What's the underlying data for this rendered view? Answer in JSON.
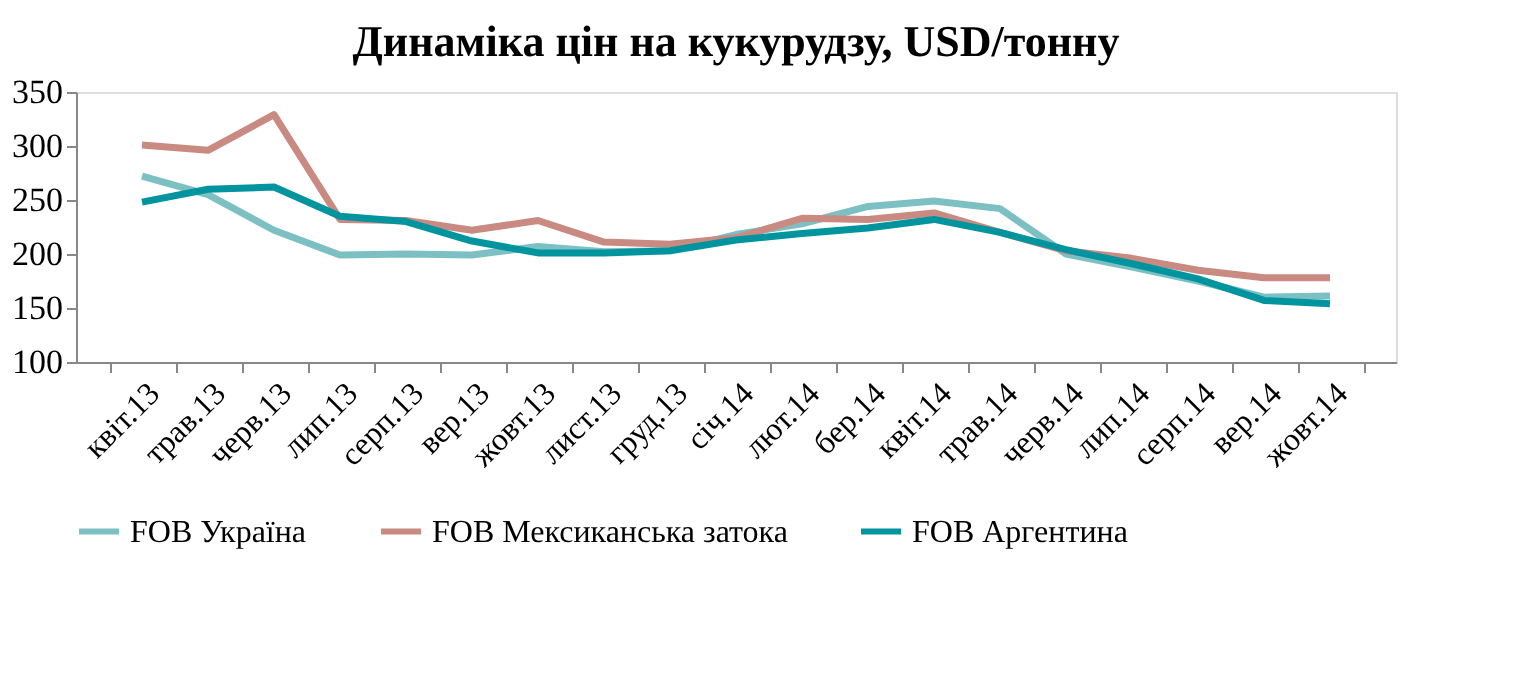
{
  "chart_data": {
    "type": "line",
    "title": "Динаміка цін на кукурудзу, USD/тонну",
    "categories": [
      "квіт.13",
      "трав.13",
      "черв.13",
      "лип.13",
      "серп.13",
      "вер.13",
      "жовт.13",
      "лист.13",
      "груд.13",
      "січ.14",
      "лют.14",
      "бер.14",
      "квіт.14",
      "трав.14",
      "черв.14",
      "лип.14",
      "серп.14",
      "вер.14",
      "жовт.14"
    ],
    "series": [
      {
        "name": "FOB Україна",
        "color": "#7dc0c4",
        "values": [
          272,
          255,
          222,
          199,
          200,
          199,
          207,
          202,
          203,
          218,
          228,
          244,
          249,
          242,
          200,
          188,
          175,
          160,
          161
        ]
      },
      {
        "name": "FOB Мексиканська затока",
        "color": "#c98a82",
        "values": [
          301,
          296,
          329,
          232,
          231,
          222,
          231,
          211,
          209,
          215,
          233,
          232,
          238,
          220,
          203,
          196,
          185,
          178,
          178
        ]
      },
      {
        "name": "FOB Аргентина",
        "color": "#00959e",
        "values": [
          248,
          260,
          262,
          235,
          230,
          212,
          201,
          201,
          203,
          213,
          219,
          224,
          232,
          220,
          204,
          191,
          177,
          157,
          154
        ]
      }
    ],
    "ylim": [
      100,
      350
    ],
    "yticks": [
      100,
      150,
      200,
      250,
      300,
      350
    ],
    "grid": false,
    "legend": "bottom",
    "marker": "none",
    "line_style": "solid"
  }
}
